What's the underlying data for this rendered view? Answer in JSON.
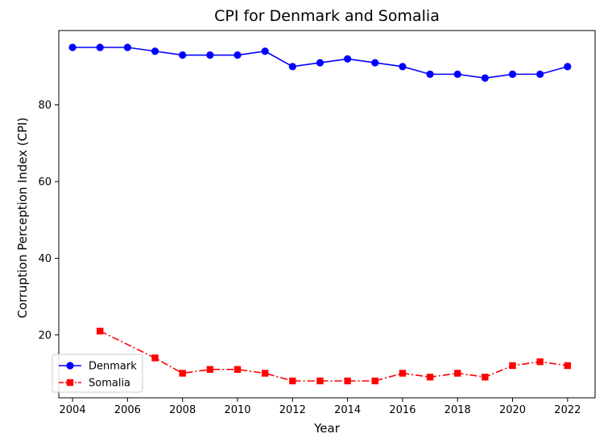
{
  "chart_data": {
    "type": "line",
    "title": "CPI for Denmark and Somalia",
    "xlabel": "Year",
    "ylabel": "Corruption Perception Index (CPI)",
    "xlim": [
      2003.5,
      2023
    ],
    "ylim": [
      3.6,
      99.4
    ],
    "xticks": [
      2004,
      2006,
      2008,
      2010,
      2012,
      2014,
      2016,
      2018,
      2020,
      2022
    ],
    "yticks": [
      20,
      40,
      60,
      80
    ],
    "grid": false,
    "legend_position": "lower-left",
    "series": [
      {
        "name": "Denmark",
        "color": "#0000ff",
        "line_style": "solid",
        "marker": "circle",
        "x": [
          2004,
          2005,
          2006,
          2007,
          2008,
          2009,
          2010,
          2011,
          2012,
          2013,
          2014,
          2015,
          2016,
          2017,
          2018,
          2019,
          2020,
          2021,
          2022
        ],
        "y": [
          95,
          95,
          95,
          94,
          93,
          93,
          93,
          94,
          90,
          91,
          92,
          91,
          90,
          88,
          88,
          87,
          88,
          88,
          90
        ]
      },
      {
        "name": "Somalia",
        "color": "#ff0000",
        "line_style": "dashdot",
        "marker": "square",
        "x": [
          2005,
          2007,
          2008,
          2009,
          2010,
          2011,
          2012,
          2013,
          2014,
          2015,
          2016,
          2017,
          2018,
          2019,
          2020,
          2021,
          2022
        ],
        "y": [
          21,
          14,
          10,
          11,
          11,
          10,
          8,
          8,
          8,
          8,
          10,
          9,
          10,
          9,
          12,
          13,
          12
        ]
      }
    ]
  }
}
